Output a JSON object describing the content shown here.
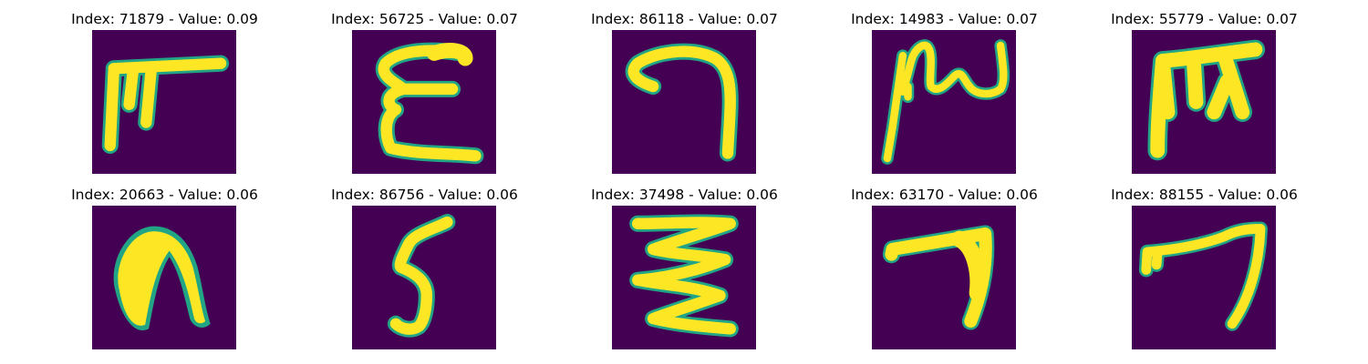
{
  "colors": {
    "background": "#440154",
    "stroke": "#fde725",
    "edge": "#21a585",
    "title_text": "#000000"
  },
  "panels": [
    {
      "title": "Index: 71879 - Value: 0.09",
      "glyph": "glyph-71879"
    },
    {
      "title": "Index: 56725 - Value: 0.07",
      "glyph": "glyph-56725"
    },
    {
      "title": "Index: 86118 - Value: 0.07",
      "glyph": "glyph-86118"
    },
    {
      "title": "Index: 14983 - Value: 0.07",
      "glyph": "glyph-14983"
    },
    {
      "title": "Index: 55779 - Value: 0.07",
      "glyph": "glyph-55779"
    },
    {
      "title": "Index: 20663 - Value: 0.06",
      "glyph": "glyph-20663"
    },
    {
      "title": "Index: 86756 - Value: 0.06",
      "glyph": "glyph-86756"
    },
    {
      "title": "Index: 37498 - Value: 0.06",
      "glyph": "glyph-37498"
    },
    {
      "title": "Index: 63170 - Value: 0.06",
      "glyph": "glyph-63170"
    },
    {
      "title": "Index: 88155 - Value: 0.06",
      "glyph": "glyph-88155"
    }
  ]
}
